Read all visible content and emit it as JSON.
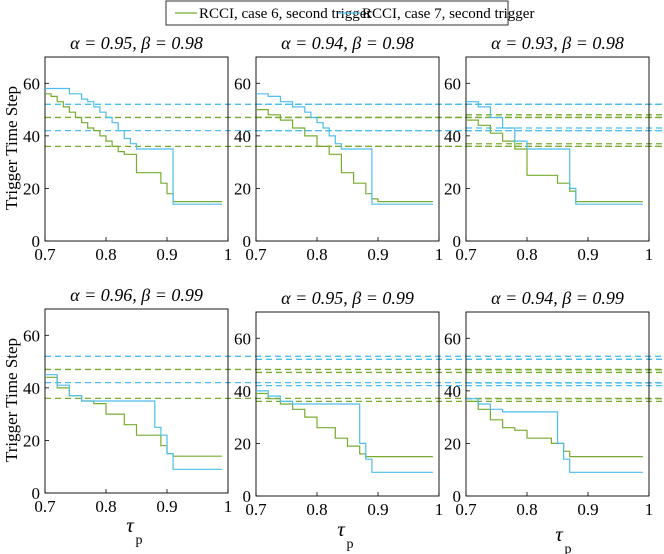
{
  "legend": {
    "position": "top-center",
    "entries": [
      {
        "label": "RCCI, case 6, second trigger",
        "color": "#77ac30"
      },
      {
        "label": "RCCI, case 7, second trigger",
        "color": "#4dbeee"
      }
    ]
  },
  "ylabel": "Trigger Time Step",
  "xlabel_main": "τ",
  "xlabel_sub": "p",
  "chart_data": [
    {
      "type": "line",
      "title_a": "α = 0.95,",
      "title_b": "β = 0.98",
      "xlim": [
        0.7,
        1.0
      ],
      "ylim": [
        0,
        70
      ],
      "xticks": [
        "0.7",
        "0.8",
        "0.9",
        "1"
      ],
      "yticks": [
        "0",
        "20",
        "40",
        "60"
      ],
      "series": [
        {
          "name": "case 6",
          "color": "#77ac30",
          "dashed": [
            47,
            36
          ],
          "x": [
            0.7,
            0.71,
            0.72,
            0.73,
            0.74,
            0.75,
            0.76,
            0.77,
            0.78,
            0.79,
            0.8,
            0.81,
            0.82,
            0.83,
            0.84,
            0.85,
            0.87,
            0.89,
            0.9,
            0.91,
            0.99
          ],
          "y": [
            56,
            55,
            53,
            51,
            49,
            47,
            45,
            43,
            42,
            40,
            38,
            36,
            34,
            33,
            33,
            26,
            26,
            22,
            18,
            15,
            15
          ]
        },
        {
          "name": "case 7",
          "color": "#4dbeee",
          "dashed": [
            52,
            42
          ],
          "x": [
            0.7,
            0.72,
            0.74,
            0.76,
            0.77,
            0.78,
            0.79,
            0.8,
            0.81,
            0.82,
            0.83,
            0.84,
            0.85,
            0.87,
            0.88,
            0.89,
            0.9,
            0.91,
            0.99
          ],
          "y": [
            58,
            58,
            56,
            54,
            53,
            51,
            49,
            47,
            45,
            42,
            39,
            37,
            35,
            35,
            35,
            35,
            35,
            14,
            14
          ]
        }
      ]
    },
    {
      "type": "line",
      "title_a": "α = 0.94,",
      "title_b": "β = 0.98",
      "xlim": [
        0.7,
        1.0
      ],
      "ylim": [
        0,
        70
      ],
      "xticks": [
        "0.7",
        "0.8",
        "0.9",
        "1"
      ],
      "yticks": [
        "0",
        "20",
        "40",
        "60"
      ],
      "series": [
        {
          "name": "case 6",
          "color": "#77ac30",
          "dashed": [
            47,
            36
          ],
          "x": [
            0.7,
            0.72,
            0.74,
            0.76,
            0.78,
            0.8,
            0.82,
            0.84,
            0.86,
            0.88,
            0.89,
            0.9,
            0.99
          ],
          "y": [
            50,
            48,
            46,
            43,
            40,
            36,
            33,
            26,
            22,
            18,
            16,
            15,
            15
          ]
        },
        {
          "name": "case 7",
          "color": "#4dbeee",
          "dashed": [
            52,
            42
          ],
          "x": [
            0.7,
            0.72,
            0.74,
            0.76,
            0.78,
            0.79,
            0.8,
            0.81,
            0.82,
            0.83,
            0.84,
            0.86,
            0.87,
            0.88,
            0.89,
            0.99
          ],
          "y": [
            56,
            55,
            53,
            51,
            49,
            47,
            45,
            43,
            40,
            37,
            35,
            35,
            35,
            35,
            14,
            14
          ]
        }
      ]
    },
    {
      "type": "line",
      "title_a": "α = 0.93,",
      "title_b": "β = 0.98",
      "xlim": [
        0.7,
        1.0
      ],
      "ylim": [
        0,
        70
      ],
      "xticks": [
        "0.7",
        "0.8",
        "0.9",
        "1"
      ],
      "yticks": [
        "0",
        "20",
        "40",
        "60"
      ],
      "series": [
        {
          "name": "case 6",
          "color": "#77ac30",
          "dashed": [
            48,
            37
          ],
          "x": [
            0.7,
            0.72,
            0.74,
            0.76,
            0.78,
            0.8,
            0.83,
            0.85,
            0.87,
            0.88,
            0.99
          ],
          "y": [
            46,
            44,
            41,
            38,
            35,
            25,
            25,
            22,
            19,
            15,
            15
          ]
        },
        {
          "name": "case 7",
          "color": "#4dbeee",
          "dashed": [
            52,
            43
          ],
          "x": [
            0.7,
            0.72,
            0.74,
            0.76,
            0.78,
            0.8,
            0.82,
            0.84,
            0.86,
            0.87,
            0.88,
            0.99
          ],
          "y": [
            53,
            51,
            47,
            43,
            38,
            35,
            35,
            35,
            35,
            20,
            14,
            14
          ]
        }
      ]
    },
    {
      "type": "line",
      "title_a": "α = 0.96,",
      "title_b": "β = 0.99",
      "xlim": [
        0.7,
        1.0
      ],
      "ylim": [
        0,
        70
      ],
      "xticks": [
        "0.7",
        "0.8",
        "0.9",
        "1"
      ],
      "yticks": [
        "0",
        "20",
        "40",
        "60"
      ],
      "series": [
        {
          "name": "case 6",
          "color": "#77ac30",
          "dashed": [
            47,
            36
          ],
          "x": [
            0.7,
            0.72,
            0.74,
            0.76,
            0.78,
            0.8,
            0.83,
            0.85,
            0.87,
            0.89,
            0.9,
            0.91,
            0.99
          ],
          "y": [
            44,
            40,
            37,
            35,
            34,
            30,
            26,
            22,
            22,
            18,
            15,
            14,
            14
          ]
        },
        {
          "name": "case 7",
          "color": "#4dbeee",
          "dashed": [
            52,
            42
          ],
          "x": [
            0.7,
            0.72,
            0.74,
            0.76,
            0.78,
            0.8,
            0.82,
            0.84,
            0.86,
            0.87,
            0.88,
            0.89,
            0.9,
            0.91,
            0.99
          ],
          "y": [
            45,
            41,
            37,
            35,
            35,
            35,
            35,
            35,
            35,
            35,
            25,
            22,
            15,
            9,
            9
          ]
        }
      ]
    },
    {
      "type": "line",
      "title_a": "α = 0.95,",
      "title_b": "β = 0.99",
      "xlim": [
        0.7,
        1.0
      ],
      "ylim": [
        0,
        70
      ],
      "xticks": [
        "0.7",
        "0.8",
        "0.9",
        "1"
      ],
      "yticks": [
        "0",
        "20",
        "40",
        "60"
      ],
      "series": [
        {
          "name": "case 6",
          "color": "#77ac30",
          "dashed": [
            47,
            36
          ],
          "x": [
            0.7,
            0.72,
            0.74,
            0.76,
            0.78,
            0.8,
            0.83,
            0.85,
            0.87,
            0.88,
            0.99
          ],
          "y": [
            39,
            37,
            35,
            33,
            30,
            26,
            22,
            19,
            16,
            15,
            15
          ]
        },
        {
          "name": "case 7",
          "color": "#4dbeee",
          "dashed": [
            52,
            42
          ],
          "x": [
            0.7,
            0.72,
            0.74,
            0.76,
            0.78,
            0.8,
            0.82,
            0.84,
            0.86,
            0.87,
            0.88,
            0.89,
            0.99
          ],
          "y": [
            40,
            38,
            36,
            35,
            35,
            35,
            35,
            35,
            35,
            20,
            14,
            9,
            9
          ]
        }
      ]
    },
    {
      "type": "line",
      "title_a": "α = 0.94,",
      "title_b": "β = 0.99",
      "xlim": [
        0.7,
        1.0
      ],
      "ylim": [
        0,
        70
      ],
      "xticks": [
        "0.7",
        "0.8",
        "0.9",
        "1"
      ],
      "yticks": [
        "0",
        "20",
        "40",
        "60"
      ],
      "series": [
        {
          "name": "case 6",
          "color": "#77ac30",
          "dashed": [
            48,
            37
          ],
          "x": [
            0.7,
            0.72,
            0.74,
            0.76,
            0.78,
            0.8,
            0.82,
            0.84,
            0.86,
            0.87,
            0.99
          ],
          "y": [
            36,
            33,
            29,
            26,
            25,
            22,
            22,
            20,
            17,
            15,
            15
          ]
        },
        {
          "name": "case 7",
          "color": "#4dbeee",
          "dashed": [
            52,
            43
          ],
          "x": [
            0.7,
            0.72,
            0.74,
            0.76,
            0.78,
            0.8,
            0.82,
            0.84,
            0.85,
            0.86,
            0.87,
            0.99
          ],
          "y": [
            37,
            35,
            33,
            32,
            32,
            32,
            32,
            32,
            20,
            14,
            9,
            9
          ]
        }
      ]
    }
  ]
}
